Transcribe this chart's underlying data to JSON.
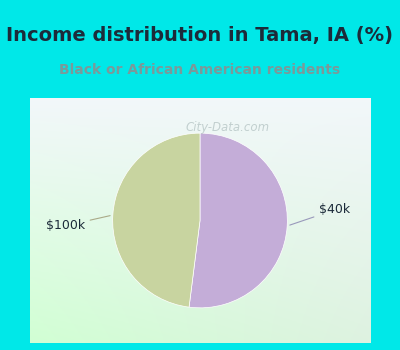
{
  "title": "Income distribution in Tama, IA (%)",
  "subtitle": "Black or African American residents",
  "title_color": "#1c2b3a",
  "subtitle_color": "#7a9a9a",
  "background_color": "#00e8e8",
  "chart_bg_top_right": "#f5f0f8",
  "chart_bg_bottom_left": "#ddeedd",
  "slices": [
    52.0,
    48.0
  ],
  "slice_colors": [
    "#c4add8",
    "#c8d4a0"
  ],
  "slice_labels": [
    "$40k",
    "$100k"
  ],
  "watermark": "City-Data.com",
  "figsize": [
    4.0,
    3.5
  ],
  "dpi": 100,
  "border_width": 8,
  "title_fontsize": 14,
  "subtitle_fontsize": 10
}
